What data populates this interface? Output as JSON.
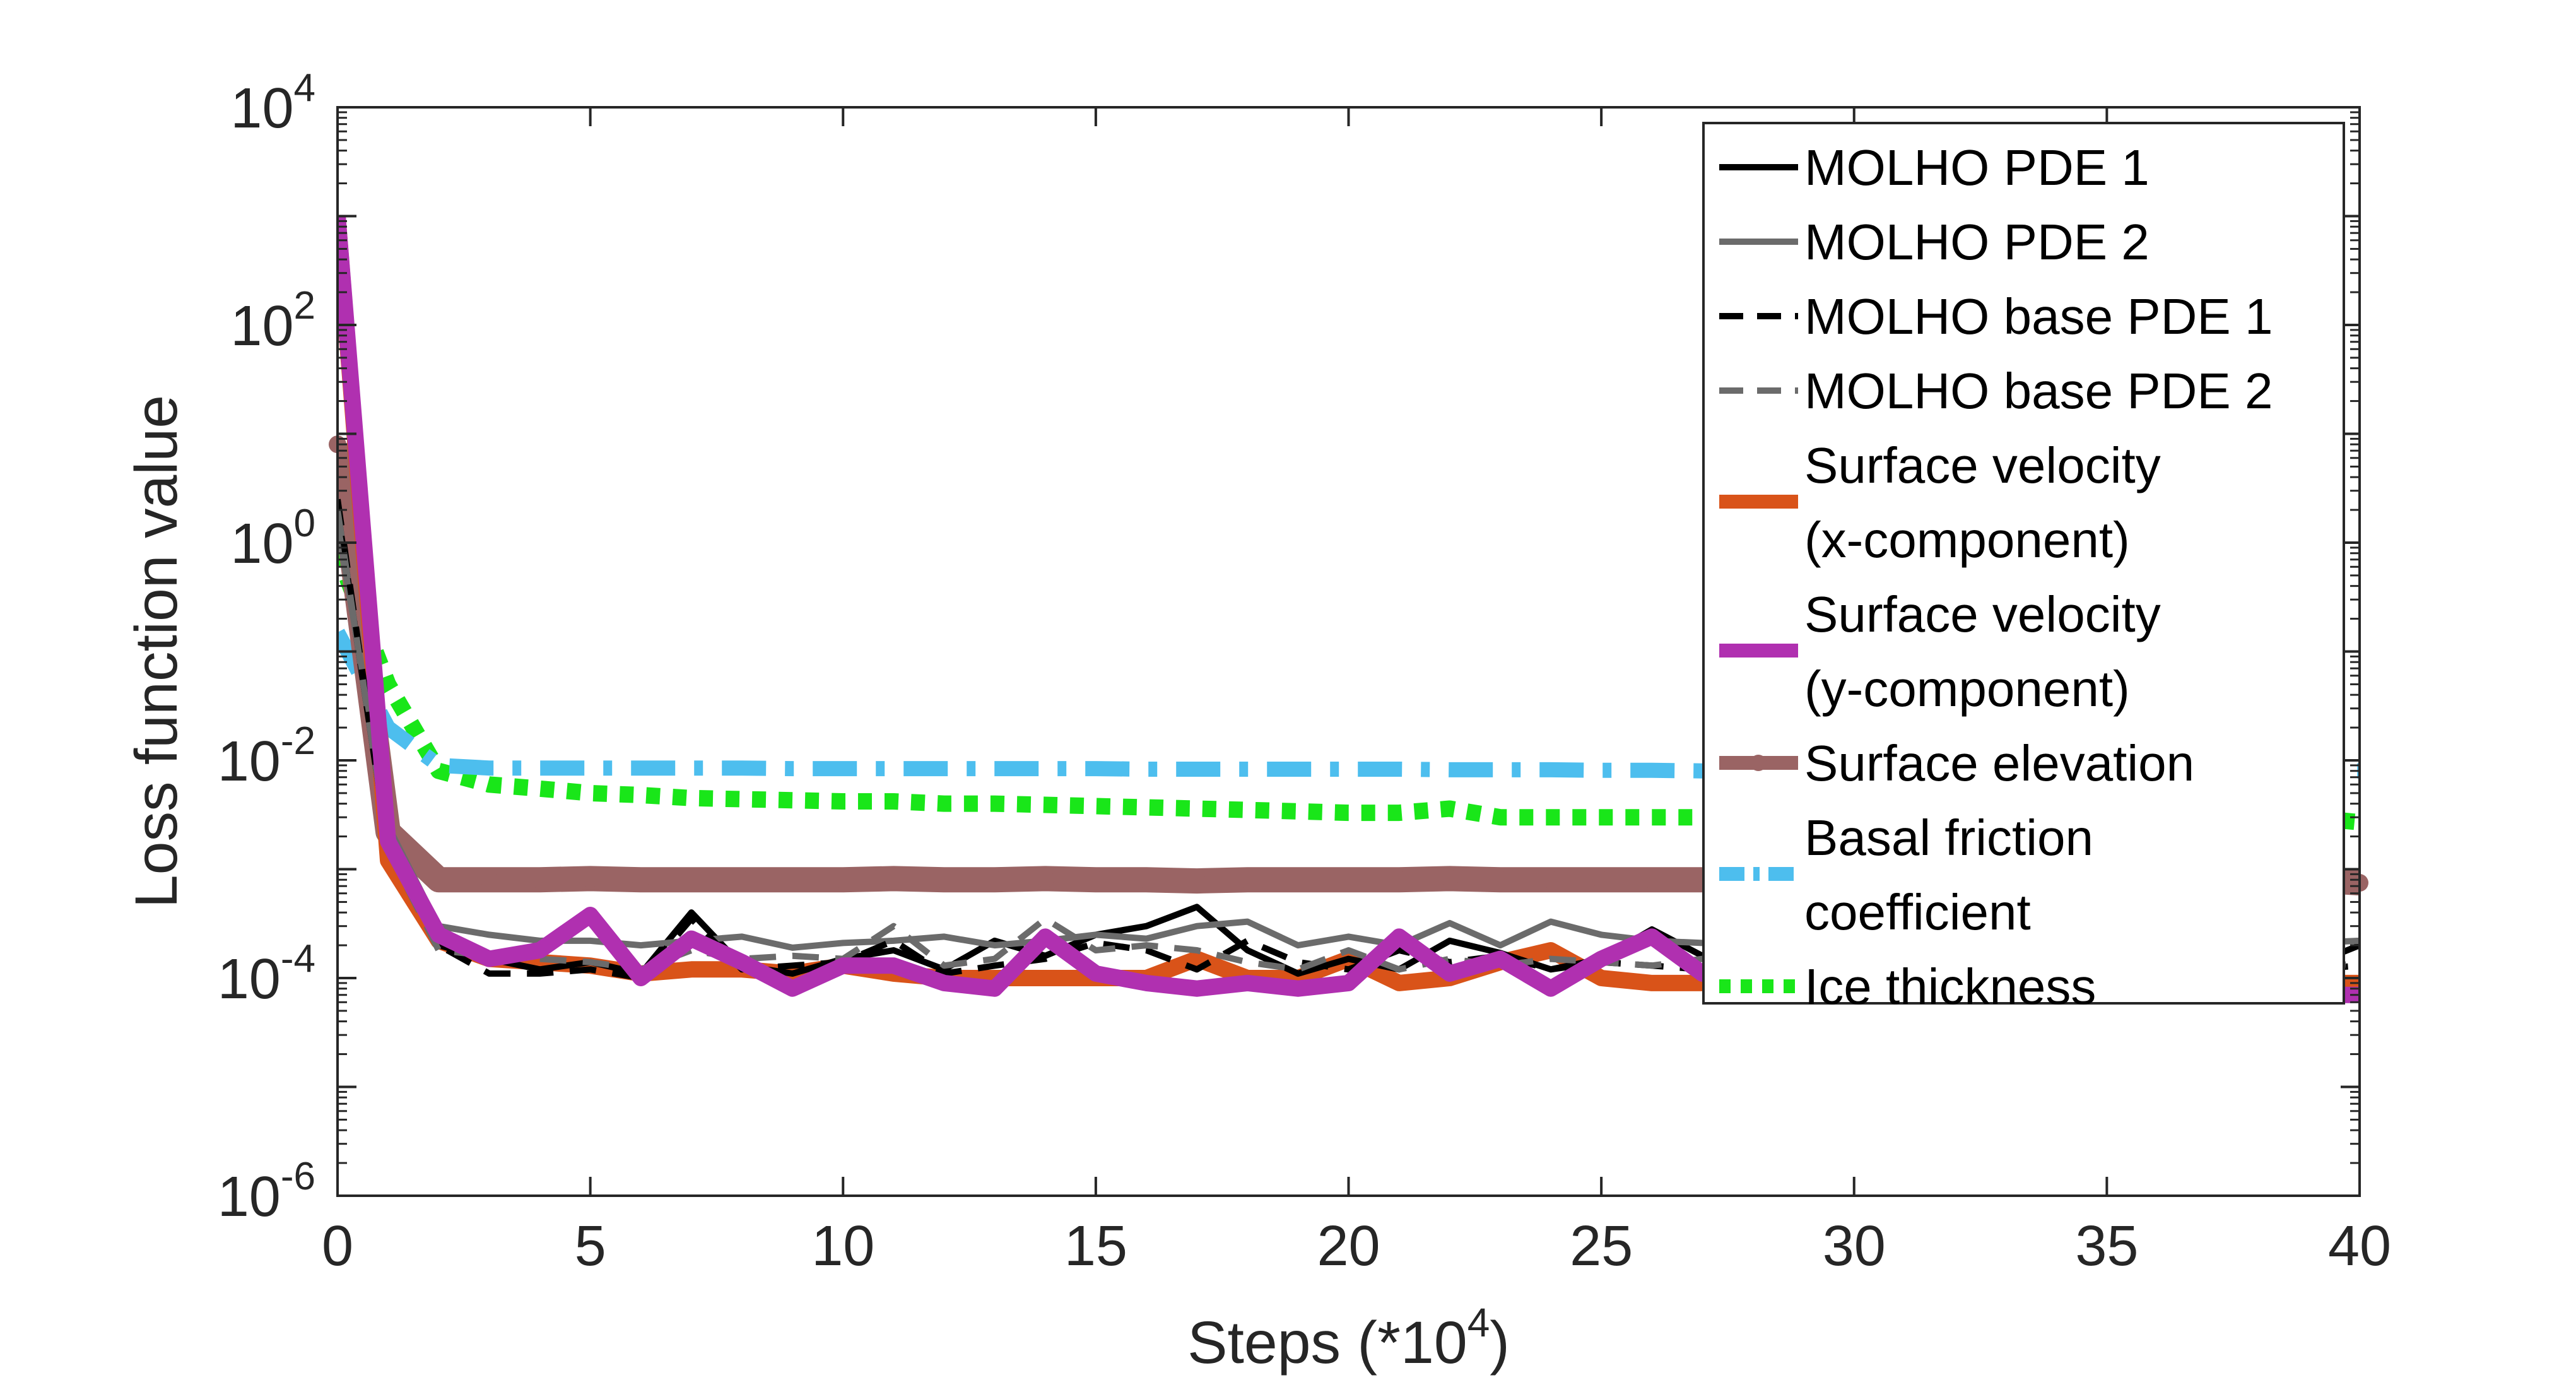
{
  "chart_data": {
    "type": "line",
    "xlabel": "Steps (*10",
    "xlabel_sup": "4",
    "xlabel_suffix": ")",
    "ylabel": "Loss function value",
    "y_scale": "log",
    "xlim": [
      0,
      40
    ],
    "ylim_exp": [
      -6,
      4
    ],
    "x_ticks": [
      "0",
      "5",
      "10",
      "15",
      "20",
      "25",
      "30",
      "35",
      "40"
    ],
    "y_ticks": [
      {
        "base": "10",
        "exp": "-6"
      },
      {
        "base": "10",
        "exp": "-4"
      },
      {
        "base": "10",
        "exp": "-2"
      },
      {
        "base": "10",
        "exp": "0"
      },
      {
        "base": "10",
        "exp": "2"
      },
      {
        "base": "10",
        "exp": "4"
      }
    ],
    "grid": false,
    "legend_position": "top-right",
    "x": [
      0,
      1,
      2,
      3,
      4,
      5,
      6,
      7,
      8,
      9,
      10,
      11,
      12,
      13,
      14,
      15,
      16,
      17,
      18,
      19,
      20,
      21,
      22,
      23,
      24,
      25,
      26,
      27,
      28,
      29,
      30,
      31,
      32,
      33,
      34,
      35,
      36,
      37,
      38,
      39,
      40
    ],
    "series": [
      {
        "name": "MOLHO PDE 1",
        "color": "#000000",
        "style": "solid",
        "width": 10,
        "values": [
          2.0,
          0.0015,
          0.0002,
          0.00015,
          0.00012,
          0.00014,
          0.00011,
          0.0004,
          0.00013,
          0.00011,
          0.00015,
          0.00018,
          0.00012,
          0.00022,
          0.00016,
          0.00025,
          0.0003,
          0.00045,
          0.00018,
          0.00011,
          0.00015,
          0.00012,
          0.00022,
          0.00017,
          0.00012,
          0.00015,
          0.00028,
          0.00016,
          0.00013,
          0.00015,
          0.00014,
          0.00016,
          0.00013,
          0.00015,
          0.00017,
          0.00014,
          0.00016,
          0.00015,
          0.00014,
          0.00013,
          0.0002
        ]
      },
      {
        "name": "MOLHO PDE 2",
        "color": "#6b6b6b",
        "style": "solid",
        "width": 10,
        "values": [
          1.5,
          0.0025,
          0.0003,
          0.00025,
          0.00022,
          0.00022,
          0.0002,
          0.00022,
          0.00024,
          0.00019,
          0.00021,
          0.00022,
          0.00024,
          0.0002,
          0.00022,
          0.00025,
          0.00023,
          0.0003,
          0.00033,
          0.0002,
          0.00024,
          0.0002,
          0.00032,
          0.0002,
          0.00033,
          0.00025,
          0.00022,
          0.00021,
          0.0002,
          0.00022,
          0.0002,
          0.00021,
          0.0002,
          0.00022,
          0.00021,
          0.0002,
          0.00022,
          0.00021,
          0.0002,
          0.00021,
          0.00022
        ]
      },
      {
        "name": "MOLHO base PDE 1",
        "color": "#000000",
        "style": "dashed",
        "width": 10,
        "values": [
          2.5,
          0.0015,
          0.0002,
          0.00011,
          0.00011,
          0.00012,
          0.0001,
          0.00035,
          0.00012,
          0.00013,
          0.00014,
          0.00022,
          0.00011,
          0.00013,
          0.00015,
          0.00021,
          0.00018,
          0.00012,
          0.00022,
          0.00014,
          0.00012,
          0.00018,
          0.00014,
          0.00016,
          0.00012,
          0.00014,
          0.00013,
          0.00012,
          0.00013,
          0.00012,
          0.00013,
          0.00012,
          0.00013,
          0.00012,
          0.00013,
          0.00012,
          0.00013,
          0.00012,
          0.00013,
          0.00012,
          0.00013
        ]
      },
      {
        "name": "MOLHO base PDE 2",
        "color": "#6b6b6b",
        "style": "dashed",
        "width": 10,
        "values": [
          2.0,
          0.0015,
          0.00018,
          0.00016,
          0.00015,
          0.00014,
          0.00012,
          0.00018,
          0.00015,
          0.00016,
          0.00015,
          0.0003,
          0.00013,
          0.00015,
          0.00035,
          0.00018,
          0.0002,
          0.00018,
          0.00014,
          0.00012,
          0.00018,
          0.00012,
          0.00015,
          0.00013,
          0.00015,
          0.00014,
          0.00013,
          0.00015,
          0.00013,
          0.00014,
          0.00013,
          0.00014,
          0.00013,
          0.00014,
          0.00013,
          0.00014,
          0.00013,
          0.00014,
          0.00013,
          0.00014,
          0.00013
        ]
      },
      {
        "name": "Surface velocity (x-component)",
        "color": "#d95319",
        "style": "solid",
        "width": 26,
        "values": [
          1000,
          0.0012,
          0.00022,
          0.00015,
          0.00014,
          0.00013,
          0.00011,
          0.00012,
          0.00012,
          0.00011,
          0.00013,
          0.00011,
          0.0001,
          0.0001,
          0.0001,
          0.0001,
          0.0001,
          0.00015,
          0.0001,
          0.0001,
          0.00015,
          9e-05,
          0.0001,
          0.00014,
          0.00018,
          0.0001,
          9e-05,
          9e-05,
          9e-05,
          9e-05,
          9e-05,
          9e-05,
          9e-05,
          9e-05,
          9e-05,
          9e-05,
          9e-05,
          9e-05,
          9e-05,
          9e-05,
          9e-05
        ]
      },
      {
        "name": "Surface velocity (y-component)",
        "color": "#b030b0",
        "style": "solid",
        "width": 26,
        "values": [
          1000,
          0.0018,
          0.00025,
          0.00015,
          0.00018,
          0.00038,
          0.0001,
          0.00023,
          0.00014,
          8e-05,
          0.00013,
          0.00013,
          9e-05,
          8e-05,
          0.00024,
          0.00011,
          9e-05,
          8e-05,
          9e-05,
          8e-05,
          9e-05,
          0.00024,
          0.00011,
          0.00015,
          8e-05,
          0.00015,
          0.00024,
          0.00011,
          0.0001,
          9e-05,
          9e-05,
          9e-05,
          8e-05,
          9e-05,
          8e-05,
          9e-05,
          8e-05,
          9e-05,
          8e-05,
          7e-05,
          7e-05
        ]
      },
      {
        "name": "Surface elevation",
        "color": "#9a6464",
        "style": "solid-markers",
        "width": 40,
        "values": [
          8.0,
          0.0022,
          0.0008,
          0.0008,
          0.0008,
          0.00082,
          0.0008,
          0.0008,
          0.0008,
          0.0008,
          0.0008,
          0.00082,
          0.0008,
          0.0008,
          0.00082,
          0.0008,
          0.0008,
          0.00078,
          0.0008,
          0.0008,
          0.0008,
          0.0008,
          0.00082,
          0.0008,
          0.0008,
          0.0008,
          0.0008,
          0.0008,
          0.0008,
          0.0008,
          0.0008,
          0.0008,
          0.0008,
          0.0008,
          0.0008,
          0.0008,
          0.0008,
          0.0008,
          0.0008,
          0.0008,
          0.00075
        ]
      },
      {
        "name": "Basal friction coefficient",
        "color": "#4dbeee",
        "style": "dashdot",
        "width": 24,
        "values": [
          0.15,
          0.02,
          0.009,
          0.0085,
          0.0085,
          0.0085,
          0.0085,
          0.0085,
          0.0085,
          0.0084,
          0.0084,
          0.0084,
          0.0084,
          0.0084,
          0.0084,
          0.0084,
          0.0083,
          0.0083,
          0.0083,
          0.0083,
          0.0083,
          0.0083,
          0.0082,
          0.0082,
          0.0082,
          0.0081,
          0.0081,
          0.008,
          0.008,
          0.008,
          0.008,
          0.008,
          0.008,
          0.008,
          0.008,
          0.008,
          0.008,
          0.008,
          0.008,
          0.008,
          0.008
        ]
      },
      {
        "name": "Ice thickness",
        "color": "#19e619",
        "style": "dotted",
        "width": 26,
        "values": [
          0.8,
          0.05,
          0.008,
          0.006,
          0.0055,
          0.005,
          0.0048,
          0.0045,
          0.0044,
          0.0043,
          0.0042,
          0.0042,
          0.004,
          0.004,
          0.0039,
          0.0038,
          0.0037,
          0.0036,
          0.0035,
          0.0034,
          0.0033,
          0.0033,
          0.0036,
          0.003,
          0.003,
          0.003,
          0.003,
          0.003,
          0.003,
          0.003,
          0.003,
          0.003,
          0.003,
          0.003,
          0.003,
          0.003,
          0.003,
          0.003,
          0.003,
          0.003,
          0.0027
        ]
      }
    ],
    "legend": [
      {
        "lines": [
          "MOLHO PDE 1"
        ]
      },
      {
        "lines": [
          "MOLHO PDE 2"
        ]
      },
      {
        "lines": [
          "MOLHO base PDE 1"
        ]
      },
      {
        "lines": [
          "MOLHO base PDE 2"
        ]
      },
      {
        "lines": [
          "Surface velocity",
          "(x-component)"
        ]
      },
      {
        "lines": [
          "Surface velocity",
          "(y-component)"
        ]
      },
      {
        "lines": [
          "Surface elevation"
        ]
      },
      {
        "lines": [
          "Basal friction",
          " coefficient"
        ]
      },
      {
        "lines": [
          "Ice thickness"
        ]
      }
    ]
  }
}
